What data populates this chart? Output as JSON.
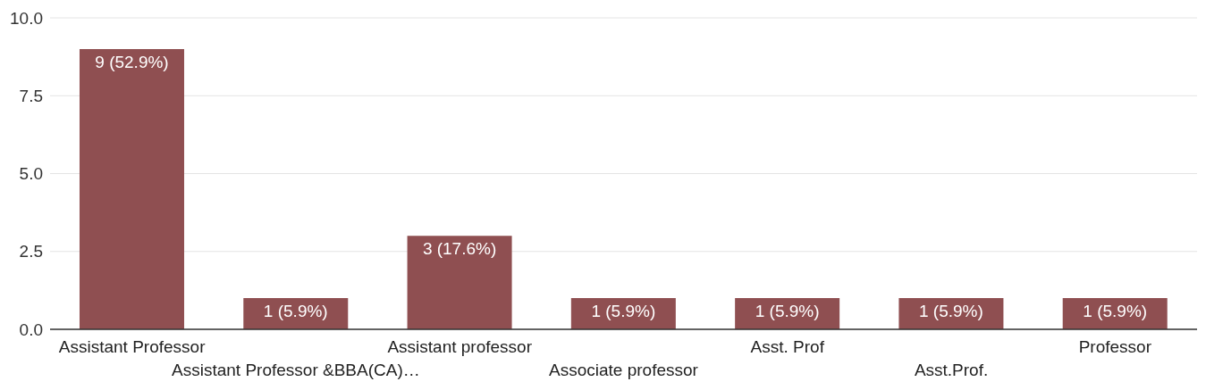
{
  "chart_data": {
    "type": "bar",
    "categories": [
      "Assistant Professor",
      "Assistant Professor &BBA(CA)…",
      "Assistant professor",
      "Associate professor",
      "Asst. Prof",
      "Asst.Prof.",
      "Professor"
    ],
    "values": [
      9,
      1,
      3,
      1,
      1,
      1,
      1
    ],
    "value_labels": [
      "9 (52.9%)",
      "1 (5.9%)",
      "3 (17.6%)",
      "1 (5.9%)",
      "1 (5.9%)",
      "1 (5.9%)",
      "1 (5.9%)"
    ],
    "color": "#8f4f51",
    "ylim": [
      0,
      10
    ],
    "yticks": [
      {
        "value": 0,
        "label": "0.0"
      },
      {
        "value": 2.5,
        "label": "2.5"
      },
      {
        "value": 5,
        "label": "5.0"
      },
      {
        "value": 7.5,
        "label": "7.5"
      },
      {
        "value": 10,
        "label": "10.0"
      }
    ],
    "grid": "y",
    "legend": false
  }
}
